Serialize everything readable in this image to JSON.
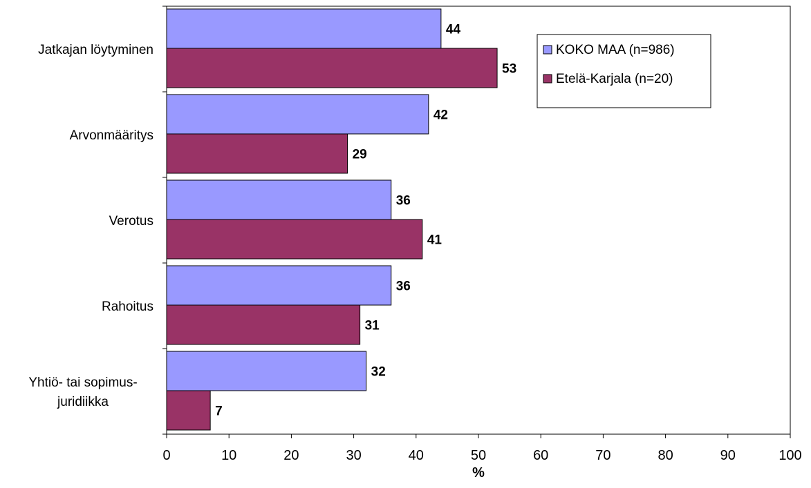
{
  "chart_data": {
    "type": "bar",
    "orientation": "horizontal",
    "categories": [
      [
        "Jatkajan löytyminen"
      ],
      [
        "Arvonmääritys"
      ],
      [
        "Verotus"
      ],
      [
        "Rahoitus"
      ],
      [
        "Yhtiö- tai sopimus-",
        "juridiikka"
      ]
    ],
    "series": [
      {
        "name": "KOKO MAA (n=986)",
        "values": [
          44,
          42,
          36,
          36,
          32
        ],
        "color": "#9999ff"
      },
      {
        "name": "Etelä-Karjala (n=20)",
        "values": [
          53,
          29,
          41,
          31,
          7
        ],
        "color": "#993366"
      }
    ],
    "xlabel": "%",
    "xlim": [
      0,
      100
    ],
    "xticks": [
      0,
      10,
      20,
      30,
      40,
      50,
      60,
      70,
      80,
      90,
      100
    ],
    "grid": false,
    "data_labels": true,
    "legend_position": "top-right"
  }
}
